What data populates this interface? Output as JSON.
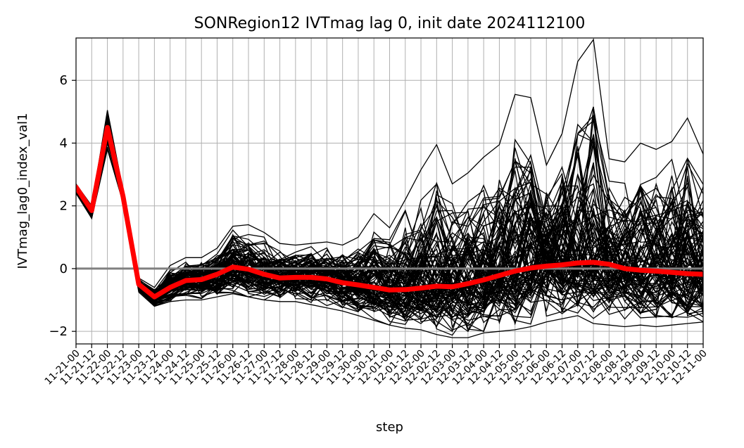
{
  "chart_data": {
    "type": "line",
    "title": "SONRegion12 IVTmag lag 0, init date 2024112100",
    "xlabel": "step",
    "ylabel": "IVTmag_lag0_index_val1",
    "ylim": [
      -2.4,
      7.35
    ],
    "yticks": [
      -2,
      0,
      2,
      4,
      6
    ],
    "ytick_labels": [
      "−2",
      "0",
      "2",
      "4",
      "6"
    ],
    "grid": true,
    "legend": "none",
    "x_labels": [
      "11-21-00",
      "11-21-12",
      "11-22-00",
      "11-22-12",
      "11-23-00",
      "11-23-12",
      "11-24-00",
      "11-24-12",
      "11-25-00",
      "11-25-12",
      "11-26-00",
      "11-26-12",
      "11-27-00",
      "11-27-12",
      "11-28-00",
      "11-28-12",
      "11-29-00",
      "11-29-12",
      "11-30-00",
      "11-30-12",
      "12-01-00",
      "12-01-12",
      "12-02-00",
      "12-02-12",
      "12-03-00",
      "12-03-12",
      "12-04-00",
      "12-04-12",
      "12-05-00",
      "12-05-12",
      "12-06-00",
      "12-06-12",
      "12-07-00",
      "12-07-12",
      "12-08-00",
      "12-08-12",
      "12-09-00",
      "12-09-12",
      "12-10-00",
      "12-10-12",
      "12-11-00"
    ],
    "reference_line": {
      "y": 0,
      "color": "#808080"
    },
    "ensemble_color": "#000000",
    "mean_color": "#ff0000",
    "ensemble_mean": [
      2.6,
      1.85,
      4.5,
      2.3,
      -0.5,
      -0.9,
      -0.6,
      -0.38,
      -0.35,
      -0.18,
      0.05,
      -0.02,
      -0.18,
      -0.3,
      -0.28,
      -0.28,
      -0.33,
      -0.45,
      -0.52,
      -0.6,
      -0.68,
      -0.67,
      -0.62,
      -0.56,
      -0.58,
      -0.48,
      -0.36,
      -0.22,
      -0.08,
      0.02,
      0.08,
      0.12,
      0.18,
      0.2,
      0.14,
      0.0,
      -0.05,
      -0.08,
      -0.12,
      -0.16,
      -0.18
    ],
    "ensemble_envelope_low": [
      2.4,
      1.6,
      3.8,
      2.1,
      -0.75,
      -1.2,
      -1.05,
      -1.0,
      -1.0,
      -0.9,
      -0.8,
      -0.9,
      -1.0,
      -1.05,
      -1.05,
      -1.15,
      -1.25,
      -1.35,
      -1.5,
      -1.65,
      -1.8,
      -1.9,
      -1.95,
      -2.1,
      -2.2,
      -2.2,
      -2.05,
      -2.0,
      -1.95,
      -1.85,
      -1.7,
      -1.6,
      -1.5,
      -1.75,
      -1.8,
      -1.85,
      -1.8,
      -1.85,
      -1.8,
      -1.75,
      -1.7
    ],
    "ensemble_envelope_high": [
      2.7,
      2.0,
      5.05,
      2.5,
      -0.3,
      -0.6,
      0.1,
      0.35,
      0.35,
      0.65,
      1.35,
      1.4,
      1.15,
      0.8,
      0.75,
      0.8,
      0.85,
      0.75,
      1.0,
      1.75,
      1.3,
      2.2,
      3.15,
      3.95,
      2.7,
      3.05,
      3.55,
      3.95,
      5.55,
      5.45,
      3.3,
      4.3,
      6.6,
      7.3,
      3.5,
      3.4,
      4.0,
      3.8,
      4.05,
      4.8,
      3.65
    ],
    "ensemble_member_count": 100
  }
}
